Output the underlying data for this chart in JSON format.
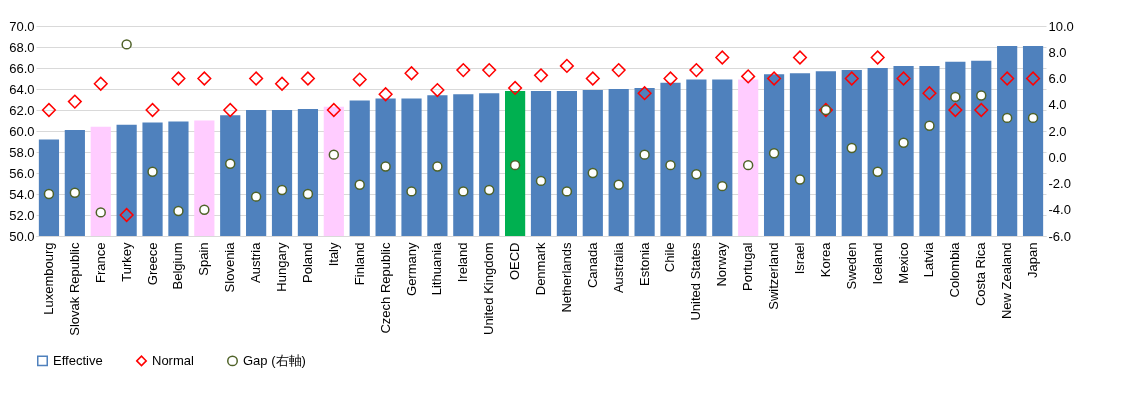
{
  "chart_data": {
    "type": "bar",
    "categories": [
      "Luxembourg",
      "Slovak Republic",
      "France",
      "Turkey",
      "Greece",
      "Belgium",
      "Spain",
      "Slovenia",
      "Austria",
      "Hungary",
      "Poland",
      "Italy",
      "Finland",
      "Czech Republic",
      "Germany",
      "Lithuania",
      "Ireland",
      "United Kingdom",
      "OECD",
      "Denmark",
      "Netherlands",
      "Canada",
      "Australia",
      "Estonia",
      "Chile",
      "United States",
      "Norway",
      "Portugal",
      "Switzerland",
      "Israel",
      "Korea",
      "Sweden",
      "Iceland",
      "Mexico",
      "Latvia",
      "Colombia",
      "Costa Rica",
      "New Zealand",
      "Japan"
    ],
    "series": [
      {
        "name": "Effective",
        "color": "#4f81bd",
        "colors": [
          "#4f81bd",
          "#4f81bd",
          "#ffccff",
          "#4f81bd",
          "#4f81bd",
          "#4f81bd",
          "#ffccff",
          "#4f81bd",
          "#4f81bd",
          "#4f81bd",
          "#4f81bd",
          "#ffccff",
          "#4f81bd",
          "#4f81bd",
          "#4f81bd",
          "#4f81bd",
          "#4f81bd",
          "#4f81bd",
          "#00b050",
          "#4f81bd",
          "#4f81bd",
          "#4f81bd",
          "#4f81bd",
          "#4f81bd",
          "#4f81bd",
          "#4f81bd",
          "#4f81bd",
          "#ffccff",
          "#4f81bd",
          "#4f81bd",
          "#4f81bd",
          "#4f81bd",
          "#4f81bd",
          "#4f81bd",
          "#4f81bd",
          "#4f81bd",
          "#4f81bd",
          "#4f81bd",
          "#4f81bd"
        ],
        "values": [
          59.2,
          60.1,
          60.4,
          60.6,
          60.8,
          60.9,
          61.0,
          61.5,
          62.0,
          62.0,
          62.1,
          62.3,
          62.9,
          63.1,
          63.1,
          63.4,
          63.5,
          63.6,
          63.8,
          63.8,
          63.8,
          63.9,
          64.0,
          64.1,
          64.6,
          64.9,
          64.9,
          64.9,
          65.4,
          65.5,
          65.7,
          65.8,
          66.0,
          66.2,
          66.2,
          66.6,
          66.7,
          68.1,
          68.1
        ]
      },
      {
        "name": "Normal",
        "type": "scatter",
        "marker": "diamond",
        "color": "#ff0000",
        "values": [
          62.0,
          62.8,
          64.5,
          52.0,
          62.0,
          65.0,
          65.0,
          62.0,
          65.0,
          64.5,
          65.0,
          62.0,
          64.9,
          63.5,
          65.5,
          63.9,
          65.8,
          65.8,
          64.1,
          65.3,
          66.2,
          65.0,
          65.8,
          63.6,
          65.0,
          65.8,
          67.0,
          65.2,
          65.0,
          67.0,
          62.0,
          65.0,
          67.0,
          65.0,
          63.6,
          62.0,
          62.0,
          65.0,
          65.0
        ]
      },
      {
        "name": "Gap (右軸)",
        "type": "scatter",
        "marker": "circle",
        "axis": "y2",
        "color": "#4f6228",
        "values": [
          -2.8,
          -2.7,
          -4.2,
          8.6,
          -1.1,
          -4.1,
          -4.0,
          -0.5,
          -3.0,
          -2.5,
          -2.8,
          0.2,
          -2.1,
          -0.7,
          -2.6,
          -0.7,
          -2.6,
          -2.5,
          -0.6,
          -1.8,
          -2.6,
          -1.2,
          -2.1,
          0.2,
          -0.6,
          -1.3,
          -2.2,
          -0.6,
          0.3,
          -1.7,
          3.6,
          0.7,
          -1.1,
          1.1,
          2.4,
          4.6,
          4.7,
          3.0,
          3.0
        ]
      }
    ],
    "ylim": [
      50,
      70
    ],
    "yticks": [
      {
        "value": 50,
        "label": "50.0"
      },
      {
        "value": 52,
        "label": "52.0"
      },
      {
        "value": 54,
        "label": "54.0"
      },
      {
        "value": 56,
        "label": "56.0"
      },
      {
        "value": 58,
        "label": "58.0"
      },
      {
        "value": 60,
        "label": "60.0"
      },
      {
        "value": 62,
        "label": "62.0"
      },
      {
        "value": 64,
        "label": "64.0"
      },
      {
        "value": 66,
        "label": "66.0"
      },
      {
        "value": 68,
        "label": "68.0"
      },
      {
        "value": 70,
        "label": "70.0"
      }
    ],
    "y2lim": [
      -6,
      10
    ],
    "y2ticks": [
      {
        "value": -6,
        "label": "-6.0"
      },
      {
        "value": -4,
        "label": "-4.0"
      },
      {
        "value": -2,
        "label": "-2.0"
      },
      {
        "value": 0,
        "label": "0.0"
      },
      {
        "value": 2,
        "label": "2.0"
      },
      {
        "value": 4,
        "label": "4.0"
      },
      {
        "value": 6,
        "label": "6.0"
      },
      {
        "value": 8,
        "label": "8.0"
      },
      {
        "value": 10,
        "label": "10.0"
      }
    ],
    "grid": "y",
    "legend": "bottom"
  }
}
